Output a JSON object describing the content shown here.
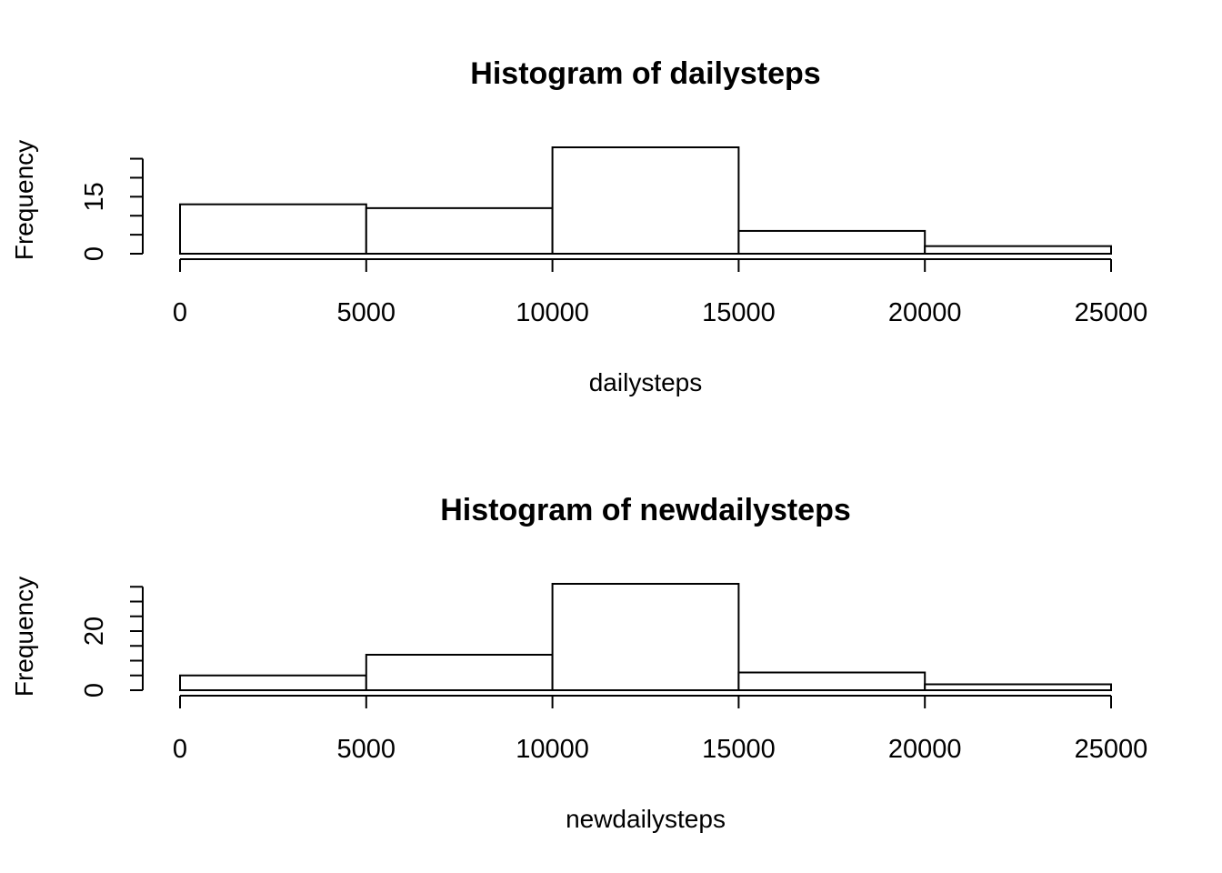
{
  "chart_data": [
    {
      "type": "bar",
      "title": "Histogram of dailysteps",
      "xlabel": "dailysteps",
      "ylabel": "Frequency",
      "bins": [
        [
          0,
          5000
        ],
        [
          5000,
          10000
        ],
        [
          10000,
          15000
        ],
        [
          15000,
          20000
        ],
        [
          20000,
          25000
        ]
      ],
      "values": [
        13,
        12,
        28,
        6,
        2
      ],
      "xlim": [
        0,
        25000
      ],
      "ylim": [
        0,
        28
      ],
      "xticks": [
        0,
        5000,
        10000,
        15000,
        20000,
        25000
      ],
      "xtick_labels": [
        "0",
        "5000",
        "10000",
        "15000",
        "20000",
        "25000"
      ],
      "yticks": [
        0,
        5,
        10,
        15,
        20,
        25
      ],
      "ytick_labels": [
        "0",
        "",
        "",
        "15",
        "",
        ""
      ],
      "grid": false
    },
    {
      "type": "bar",
      "title": "Histogram of newdailysteps",
      "xlabel": "newdailysteps",
      "ylabel": "Frequency",
      "bins": [
        [
          0,
          5000
        ],
        [
          5000,
          10000
        ],
        [
          10000,
          15000
        ],
        [
          15000,
          20000
        ],
        [
          20000,
          25000
        ]
      ],
      "values": [
        5,
        12,
        36,
        6,
        2
      ],
      "xlim": [
        0,
        25000
      ],
      "ylim": [
        0,
        36
      ],
      "xticks": [
        0,
        5000,
        10000,
        15000,
        20000,
        25000
      ],
      "xtick_labels": [
        "0",
        "5000",
        "10000",
        "15000",
        "20000",
        "25000"
      ],
      "yticks": [
        0,
        5,
        10,
        15,
        20,
        25,
        30,
        35
      ],
      "ytick_labels": [
        "0",
        "",
        "",
        "",
        "20",
        "",
        "",
        ""
      ],
      "grid": false
    }
  ]
}
